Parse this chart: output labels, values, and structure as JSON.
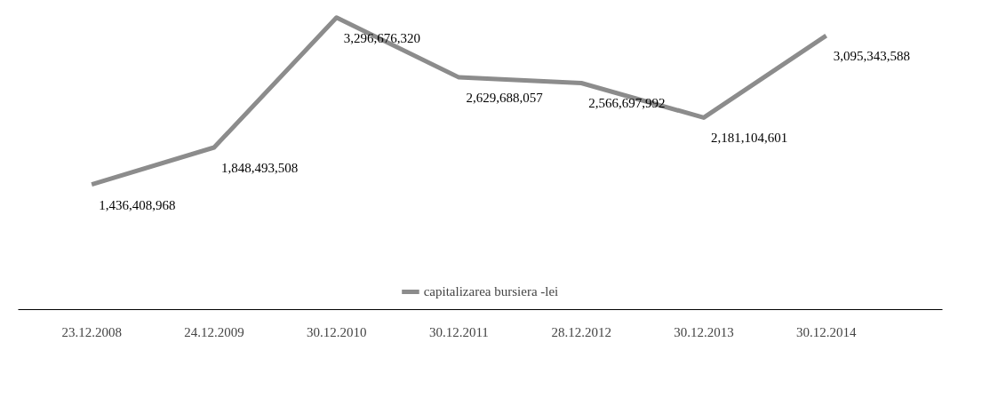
{
  "chart_data": {
    "type": "line",
    "categories": [
      "23.12.2008",
      "24.12.2009",
      "30.12.2010",
      "30.12.2011",
      "28.12.2012",
      "30.12.2013",
      "30.12.2014"
    ],
    "series": [
      {
        "name": "capitalizarea bursiera -lei",
        "color": "#8c8c8c",
        "values": [
          1436408968,
          1848493508,
          3296676320,
          2629688057,
          2566697992,
          2181104601,
          3095343588
        ],
        "value_labels": [
          "1,436,408,968",
          "1,848,493,508",
          "3,296,676,320",
          "2,629,688,057",
          "2,566,697,992",
          "2,181,104,601",
          "3,095,343,588"
        ]
      }
    ],
    "grid": false,
    "legend": "bottom",
    "marker": "none",
    "line_style": "solid"
  }
}
